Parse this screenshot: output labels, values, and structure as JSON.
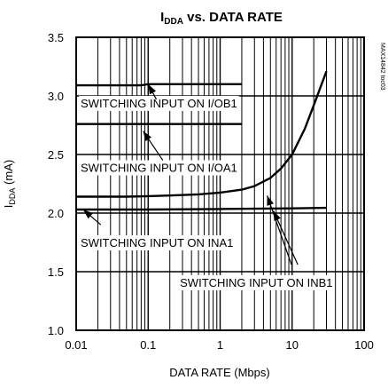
{
  "chart_data": {
    "type": "line",
    "title_main": "I",
    "title_sub": "DDA",
    "title_rest": " vs. DATA RATE",
    "xlabel": "DATA RATE (Mbps)",
    "ylabel_main": "I",
    "ylabel_sub": "DDA",
    "ylabel_rest": " (mA)",
    "x_scale": "log",
    "xlim": [
      0.01,
      100
    ],
    "ylim": [
      1.0,
      3.5
    ],
    "x_ticks": [
      {
        "value": 0.01,
        "label": "0.01"
      },
      {
        "value": 0.1,
        "label": "0.1"
      },
      {
        "value": 1,
        "label": "1"
      },
      {
        "value": 10,
        "label": "10"
      },
      {
        "value": 100,
        "label": "100"
      }
    ],
    "y_ticks": [
      {
        "value": 1.0,
        "label": "1.0"
      },
      {
        "value": 1.5,
        "label": "1.5"
      },
      {
        "value": 2.0,
        "label": "2.0"
      },
      {
        "value": 2.5,
        "label": "2.5"
      },
      {
        "value": 3.0,
        "label": "3.0"
      },
      {
        "value": 3.5,
        "label": "3.5"
      }
    ],
    "grid": true,
    "code_label": "MAX14842 toc03",
    "series": [
      {
        "key": "iob1",
        "x": [
          0.01,
          0.05,
          0.08,
          0.1,
          0.15,
          0.3,
          0.6,
          1,
          2
        ],
        "y": [
          3.09,
          3.09,
          3.09,
          3.1,
          3.1,
          3.1,
          3.1,
          3.1,
          3.1
        ]
      },
      {
        "key": "ioa1",
        "x": [
          0.01,
          0.05,
          0.1,
          0.3,
          0.6,
          1,
          2
        ],
        "y": [
          2.76,
          2.76,
          2.76,
          2.76,
          2.76,
          2.76,
          2.76
        ]
      },
      {
        "key": "inb1",
        "x": [
          0.01,
          0.05,
          0.1,
          0.2,
          0.5,
          1,
          2,
          3,
          5,
          7,
          10,
          15,
          20,
          30
        ],
        "y": [
          2.14,
          2.14,
          2.145,
          2.15,
          2.16,
          2.175,
          2.2,
          2.23,
          2.3,
          2.38,
          2.5,
          2.72,
          2.92,
          3.21
        ]
      },
      {
        "key": "ina1",
        "x": [
          0.01,
          0.1,
          1,
          10,
          30
        ],
        "y": [
          2.03,
          2.03,
          2.035,
          2.04,
          2.045
        ]
      }
    ],
    "annotations": [
      {
        "text": "SWITCHING INPUT ON I/OB1",
        "x": 0.01,
        "y": 2.94,
        "arrows": [
          {
            "from": [
              0.13,
              2.97
            ],
            "to": [
              0.1,
              3.1
            ]
          }
        ]
      },
      {
        "text": "SWITCHING INPUT ON I/OA1",
        "x": 0.01,
        "y": 2.39,
        "arrows": [
          {
            "from": [
              0.16,
              2.45
            ],
            "to": [
              0.085,
              2.7
            ]
          }
        ]
      },
      {
        "text": "SWITCHING INPUT ON INA1",
        "x": 0.01,
        "y": 1.75,
        "arrows": [
          {
            "from": [
              0.022,
              1.9
            ],
            "to": [
              0.0125,
              2.03
            ]
          }
        ]
      },
      {
        "text": "SWITCHING INPUT ON INB1",
        "x": 0.24,
        "y": 1.41,
        "arrows": [
          {
            "from": [
              9.8,
              1.56
            ],
            "to": [
              4.5,
              2.15
            ]
          },
          {
            "from": [
              12,
              1.56
            ],
            "to": [
              5.5,
              2.02
            ]
          }
        ]
      }
    ]
  }
}
